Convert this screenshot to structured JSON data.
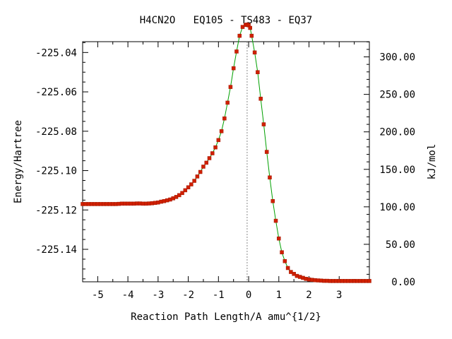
{
  "chart_data": {
    "type": "scatter",
    "title": "H4CN2O   EQ105 - TS483 - EQ37",
    "xlabel": "Reaction Path Length/A amu^{1/2}",
    "ylabel": "Energy/Hartree",
    "y2label": "kJ/mol",
    "xlim": [
      -5.5,
      4.0
    ],
    "ylim": [
      -225.1565,
      -225.0345
    ],
    "y2lim": [
      0.0,
      320.3
    ],
    "xticks": [
      "-5",
      "-4",
      "-3",
      "-2",
      "-1",
      "0",
      "1",
      "2",
      "3"
    ],
    "xtick_values": [
      -5,
      -4,
      -3,
      -2,
      -1,
      0,
      1,
      2,
      3
    ],
    "yticks": [
      "-225.04",
      "-225.06",
      "-225.08",
      "-225.10",
      "-225.12",
      "-225.14"
    ],
    "ytick_values": [
      -225.04,
      -225.06,
      -225.08,
      -225.1,
      -225.12,
      -225.14
    ],
    "y2ticks": [
      "300.00",
      "250.00",
      "200.00",
      "150.00",
      "100.00",
      "50.00",
      "0.00"
    ],
    "y2tick_values": [
      300,
      250,
      200,
      150,
      100,
      50,
      0
    ],
    "ts_x": -0.05,
    "grid": false,
    "legend": "none",
    "series_color": "#d02000",
    "line_color": "#00a000",
    "x": [
      -5.5,
      -5.4,
      -5.3,
      -5.2,
      -5.1,
      -5.0,
      -4.9,
      -4.8,
      -4.7,
      -4.6,
      -4.5,
      -4.4,
      -4.3,
      -4.2,
      -4.1,
      -4.0,
      -3.9,
      -3.8,
      -3.7,
      -3.6,
      -3.5,
      -3.4,
      -3.3,
      -3.2,
      -3.1,
      -3.0,
      -2.9,
      -2.8,
      -2.7,
      -2.6,
      -2.5,
      -2.4,
      -2.3,
      -2.2,
      -2.1,
      -2.0,
      -1.9,
      -1.8,
      -1.7,
      -1.6,
      -1.5,
      -1.4,
      -1.3,
      -1.2,
      -1.1,
      -1.0,
      -0.9,
      -0.8,
      -0.7,
      -0.6,
      -0.5,
      -0.4,
      -0.3,
      -0.2,
      -0.1,
      -0.05,
      0.0,
      0.05,
      0.1,
      0.2,
      0.3,
      0.4,
      0.5,
      0.6,
      0.7,
      0.8,
      0.9,
      1.0,
      1.1,
      1.2,
      1.3,
      1.4,
      1.5,
      1.6,
      1.7,
      1.8,
      1.9,
      2.0,
      2.1,
      2.2,
      2.3,
      2.4,
      2.5,
      2.6,
      2.7,
      2.8,
      2.9,
      3.0,
      3.1,
      3.2,
      3.3,
      3.4,
      3.5,
      3.6,
      3.7,
      3.8,
      3.9,
      4.0
    ],
    "y": [
      -225.117,
      -225.117,
      -225.117,
      -225.117,
      -225.117,
      -225.117,
      -225.117,
      -225.117,
      -225.117,
      -225.117,
      -225.117,
      -225.117,
      -225.1169,
      -225.1168,
      -225.1168,
      -225.1168,
      -225.1168,
      -225.1168,
      -225.1167,
      -225.1167,
      -225.1168,
      -225.1168,
      -225.1167,
      -225.1166,
      -225.1164,
      -225.1162,
      -225.1158,
      -225.1155,
      -225.1151,
      -225.1147,
      -225.1141,
      -225.1134,
      -225.1125,
      -225.1114,
      -225.11,
      -225.1085,
      -225.107,
      -225.1052,
      -225.103,
      -225.1007,
      -225.098,
      -225.096,
      -225.0937,
      -225.0912,
      -225.0882,
      -225.0845,
      -225.08,
      -225.0735,
      -225.0655,
      -225.0575,
      -225.048,
      -225.0395,
      -225.0315,
      -225.027,
      -225.026,
      -225.0258,
      -225.0262,
      -225.0275,
      -225.0315,
      -225.04,
      -225.05,
      -225.0635,
      -225.0765,
      -225.0905,
      -225.1035,
      -225.1155,
      -225.1255,
      -225.1345,
      -225.1415,
      -225.146,
      -225.1495,
      -225.1515,
      -225.1525,
      -225.1535,
      -225.154,
      -225.1545,
      -225.155,
      -225.1553,
      -225.1555,
      -225.1557,
      -225.1558,
      -225.1559,
      -225.156,
      -225.156,
      -225.1561,
      -225.1561,
      -225.1561,
      -225.1561,
      -225.1561,
      -225.1561,
      -225.1561,
      -225.1561,
      -225.1561,
      -225.1561,
      -225.1561,
      -225.1561,
      -225.1561,
      -225.1561
    ]
  }
}
